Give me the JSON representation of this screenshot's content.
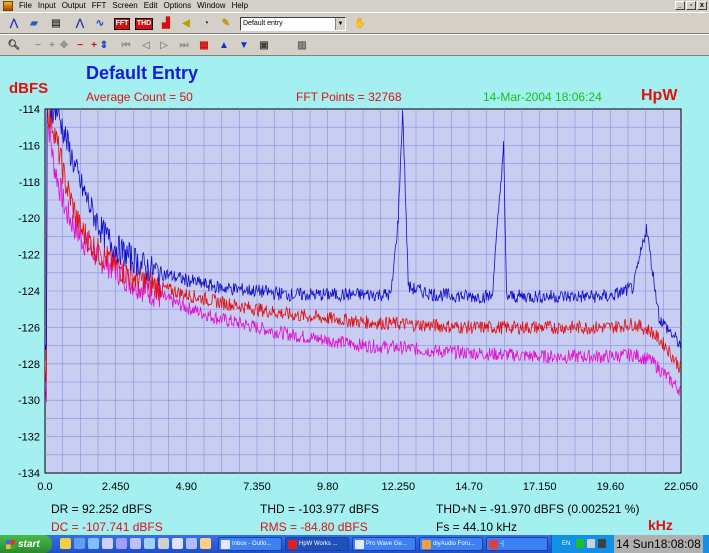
{
  "menu": [
    "File",
    "Input",
    "Output",
    "FFT",
    "Screen",
    "Edit",
    "Options",
    "Window",
    "Help"
  ],
  "window_buttons": [
    "_",
    "▫",
    "x"
  ],
  "toolbar": {
    "entry_select": "Default entry",
    "fft_label": "FFT",
    "thd_label": "THD"
  },
  "header": {
    "title": "Default Entry",
    "ylabel": "dBFS",
    "average": "Average Count = 50",
    "fft_points": "FFT Points = 32768",
    "datetime": "14-Mar-2004 18:06:24",
    "brand": "HpW",
    "xunit": "kHz"
  },
  "chart_data": {
    "type": "line",
    "ylabel": "dBFS",
    "xlabel": "kHz",
    "ylim": [
      -134,
      -114
    ],
    "xlim": [
      0,
      22.05
    ],
    "y_ticks": [
      "-114",
      "-116",
      "-118",
      "-120",
      "-122",
      "-124",
      "-126",
      "-128",
      "-130",
      "-132",
      "-134"
    ],
    "x_ticks": [
      "0.0",
      "2.450",
      "4.90",
      "7.350",
      "9.80",
      "12.250",
      "14.70",
      "17.150",
      "19.60",
      "22.050"
    ],
    "grid": true,
    "series": [
      {
        "color": "#1010c8",
        "points": [
          [
            0.05,
            -114
          ],
          [
            0.4,
            -114
          ],
          [
            0.8,
            -116
          ],
          [
            1.2,
            -118
          ],
          [
            1.6,
            -119.5
          ],
          [
            2.0,
            -120.8
          ],
          [
            2.45,
            -121.6
          ],
          [
            3.0,
            -122.2
          ],
          [
            3.5,
            -122.7
          ],
          [
            4.0,
            -123.0
          ],
          [
            4.9,
            -123.4
          ],
          [
            6.0,
            -123.8
          ],
          [
            7.35,
            -124.0
          ],
          [
            8.5,
            -124.2
          ],
          [
            9.8,
            -124.2
          ],
          [
            11.0,
            -124.2
          ],
          [
            12.0,
            -124.2
          ],
          [
            12.25,
            -120
          ],
          [
            12.4,
            -114
          ],
          [
            12.6,
            -123.8
          ],
          [
            13.5,
            -124.2
          ],
          [
            14.7,
            -124.3
          ],
          [
            15.5,
            -124.3
          ],
          [
            15.9,
            -116
          ],
          [
            16.0,
            -124.3
          ],
          [
            17.15,
            -124.3
          ],
          [
            18.5,
            -124.3
          ],
          [
            19.6,
            -124.3
          ],
          [
            20.4,
            -123.8
          ],
          [
            20.85,
            -120.5
          ],
          [
            21.3,
            -125.5
          ],
          [
            21.8,
            -126.5
          ],
          [
            22.05,
            -127
          ]
        ]
      },
      {
        "color": "#e01010",
        "points": [
          [
            0.05,
            -114
          ],
          [
            0.3,
            -115
          ],
          [
            0.7,
            -118
          ],
          [
            1.2,
            -120.5
          ],
          [
            1.8,
            -121.8
          ],
          [
            2.45,
            -122.6
          ],
          [
            3.0,
            -123.2
          ],
          [
            4.0,
            -123.8
          ],
          [
            4.9,
            -124.2
          ],
          [
            6.0,
            -124.6
          ],
          [
            7.35,
            -125.0
          ],
          [
            8.5,
            -125.3
          ],
          [
            9.8,
            -125.5
          ],
          [
            11.0,
            -125.7
          ],
          [
            12.25,
            -125.8
          ],
          [
            13.5,
            -125.9
          ],
          [
            14.7,
            -126.0
          ],
          [
            16.0,
            -126.0
          ],
          [
            17.15,
            -126.0
          ],
          [
            18.5,
            -126.0
          ],
          [
            19.6,
            -126.0
          ],
          [
            20.4,
            -125.8
          ],
          [
            21.0,
            -126.2
          ],
          [
            21.5,
            -127.0
          ],
          [
            22.05,
            -128.3
          ]
        ]
      },
      {
        "color": "#e010d0",
        "points": [
          [
            0.05,
            -114
          ],
          [
            0.3,
            -117
          ],
          [
            0.7,
            -119.5
          ],
          [
            1.2,
            -121
          ],
          [
            1.8,
            -122.1
          ],
          [
            2.45,
            -122.8
          ],
          [
            3.0,
            -123.5
          ],
          [
            4.0,
            -124.3
          ],
          [
            4.9,
            -124.9
          ],
          [
            6.0,
            -125.5
          ],
          [
            7.35,
            -126.0
          ],
          [
            8.5,
            -126.4
          ],
          [
            9.8,
            -126.7
          ],
          [
            11.0,
            -127.0
          ],
          [
            12.25,
            -127.1
          ],
          [
            13.5,
            -127.3
          ],
          [
            14.7,
            -127.4
          ],
          [
            16.0,
            -127.5
          ],
          [
            17.15,
            -127.6
          ],
          [
            18.5,
            -127.6
          ],
          [
            19.6,
            -127.6
          ],
          [
            20.4,
            -127.5
          ],
          [
            21.0,
            -127.8
          ],
          [
            21.5,
            -128.6
          ],
          [
            22.05,
            -129.5
          ]
        ]
      }
    ]
  },
  "stats": {
    "dr": "DR = 92.252 dBFS",
    "thd": "THD = -103.977 dBFS",
    "thdn": "THD+N = -91.970 dBFS (0.002521 %)",
    "dc": "DC = -107.741 dBFS",
    "rms": "RMS = -84.80 dBFS",
    "fs": "Fs = 44.10 kHz"
  },
  "taskbar": {
    "start": "start",
    "tasks": [
      "Inbox - Outlo...",
      "HpW Works ...",
      "Pro Wave Ge...",
      "diyAudio Foru...",
      "-]"
    ],
    "lang": "EN",
    "clock": "14 Sun18:08:08"
  }
}
